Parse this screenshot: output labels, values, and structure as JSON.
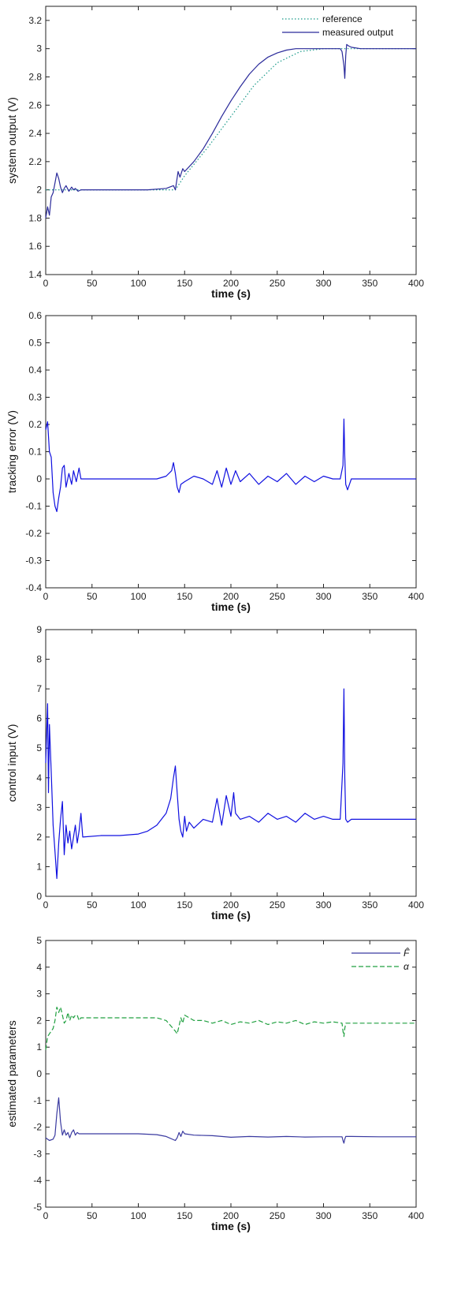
{
  "chart_data": [
    {
      "type": "line",
      "xlabel": "time (s)",
      "ylabel": "system output (V)",
      "xlim": [
        0,
        400
      ],
      "ylim": [
        1.4,
        3.3
      ],
      "xticks": [
        0,
        50,
        100,
        150,
        200,
        250,
        300,
        350,
        400
      ],
      "yticks": [
        1.4,
        1.6,
        1.8,
        2,
        2.2,
        2.4,
        2.6,
        2.8,
        3,
        3.2
      ],
      "legend_position": "top-right",
      "series": [
        {
          "name": "reference",
          "color": "#1a9a8a",
          "style": "dotted",
          "x": [
            0,
            140,
            150,
            175,
            200,
            225,
            250,
            275,
            300,
            400
          ],
          "y": [
            2.0,
            2.0,
            2.1,
            2.3,
            2.52,
            2.74,
            2.9,
            2.98,
            3.0,
            3.0
          ]
        },
        {
          "name": "measured output",
          "color": "#2a2a9a",
          "style": "solid",
          "x": [
            0,
            2,
            4,
            6,
            8,
            10,
            12,
            14,
            16,
            18,
            20,
            22,
            25,
            28,
            30,
            32,
            35,
            38,
            40,
            50,
            80,
            110,
            130,
            138,
            140,
            143,
            145,
            148,
            150,
            160,
            170,
            180,
            190,
            200,
            210,
            220,
            230,
            240,
            250,
            260,
            270,
            280,
            290,
            300,
            310,
            318,
            320,
            322,
            323,
            324,
            325,
            327,
            330,
            340,
            400
          ],
          "y": [
            1.8,
            1.88,
            1.82,
            1.95,
            1.98,
            2.05,
            2.12,
            2.08,
            2.02,
            1.98,
            2.01,
            2.03,
            1.99,
            2.02,
            2.0,
            2.01,
            1.99,
            2.0,
            2.0,
            2.0,
            2.0,
            2.0,
            2.01,
            2.03,
            2.0,
            2.13,
            2.09,
            2.15,
            2.13,
            2.2,
            2.29,
            2.4,
            2.52,
            2.63,
            2.73,
            2.82,
            2.89,
            2.94,
            2.97,
            2.99,
            3.0,
            3.0,
            3.0,
            3.0,
            3.0,
            3.0,
            2.98,
            2.88,
            2.79,
            2.95,
            3.03,
            3.02,
            3.01,
            3.0,
            3.0
          ]
        }
      ]
    },
    {
      "type": "line",
      "xlabel": "time (s)",
      "ylabel": "tracking error (V)",
      "xlim": [
        0,
        400
      ],
      "ylim": [
        -0.4,
        0.6
      ],
      "xticks": [
        0,
        50,
        100,
        150,
        200,
        250,
        300,
        350,
        400
      ],
      "yticks": [
        -0.4,
        -0.3,
        -0.2,
        -0.1,
        0,
        0.1,
        0.2,
        0.3,
        0.4,
        0.5,
        0.6
      ],
      "series": [
        {
          "color": "#1010e0",
          "x": [
            0,
            2,
            4,
            6,
            8,
            10,
            12,
            14,
            16,
            18,
            20,
            22,
            25,
            28,
            30,
            33,
            36,
            38,
            40,
            60,
            80,
            100,
            120,
            130,
            136,
            138,
            140,
            142,
            144,
            146,
            150,
            160,
            170,
            180,
            185,
            190,
            195,
            200,
            205,
            210,
            220,
            230,
            240,
            250,
            260,
            270,
            280,
            290,
            300,
            310,
            318,
            321,
            322,
            323,
            324,
            326,
            328,
            330,
            340,
            360,
            380,
            400
          ],
          "y": [
            0.18,
            0.21,
            0.1,
            0.08,
            -0.05,
            -0.1,
            -0.12,
            -0.07,
            -0.03,
            0.04,
            0.05,
            -0.03,
            0.02,
            -0.02,
            0.03,
            -0.01,
            0.04,
            0.0,
            0.0,
            0.0,
            0.0,
            0.0,
            0.0,
            0.01,
            0.03,
            0.06,
            0.02,
            -0.03,
            -0.05,
            -0.02,
            -0.01,
            0.01,
            0.0,
            -0.02,
            0.03,
            -0.03,
            0.04,
            -0.02,
            0.03,
            -0.01,
            0.02,
            -0.02,
            0.01,
            -0.01,
            0.02,
            -0.02,
            0.01,
            -0.01,
            0.01,
            0.0,
            0.0,
            0.05,
            0.22,
            0.08,
            -0.02,
            -0.04,
            -0.02,
            0.0,
            0.0,
            0.0,
            0.0,
            0.0
          ]
        }
      ]
    },
    {
      "type": "line",
      "xlabel": "time (s)",
      "ylabel": "control input (V)",
      "xlim": [
        0,
        400
      ],
      "ylim": [
        0,
        9
      ],
      "xticks": [
        0,
        50,
        100,
        150,
        200,
        250,
        300,
        350,
        400
      ],
      "yticks": [
        0,
        1,
        2,
        3,
        4,
        5,
        6,
        7,
        8,
        9
      ],
      "series": [
        {
          "color": "#1010e0",
          "x": [
            0,
            2,
            3,
            4,
            6,
            8,
            10,
            12,
            14,
            16,
            18,
            20,
            22,
            24,
            26,
            28,
            30,
            32,
            34,
            36,
            38,
            40,
            60,
            80,
            100,
            110,
            120,
            130,
            135,
            138,
            140,
            142,
            144,
            146,
            148,
            150,
            152,
            155,
            160,
            170,
            180,
            185,
            190,
            195,
            200,
            203,
            205,
            210,
            220,
            230,
            240,
            250,
            260,
            270,
            280,
            290,
            300,
            310,
            318,
            321,
            322,
            323,
            324,
            326,
            330,
            340,
            360,
            380,
            400
          ],
          "y": [
            4.5,
            6.5,
            3.5,
            5.8,
            4.2,
            2.4,
            1.5,
            0.6,
            1.8,
            2.6,
            3.2,
            1.4,
            2.4,
            1.8,
            2.2,
            1.6,
            2.0,
            2.4,
            1.8,
            2.2,
            2.8,
            2.0,
            2.05,
            2.05,
            2.1,
            2.2,
            2.4,
            2.8,
            3.3,
            4.0,
            4.4,
            3.5,
            2.6,
            2.2,
            2.0,
            2.7,
            2.2,
            2.5,
            2.3,
            2.6,
            2.5,
            3.3,
            2.4,
            3.4,
            2.7,
            3.5,
            2.8,
            2.6,
            2.7,
            2.5,
            2.8,
            2.6,
            2.7,
            2.5,
            2.8,
            2.6,
            2.7,
            2.6,
            2.6,
            4.5,
            7.0,
            4.0,
            2.6,
            2.5,
            2.6,
            2.6,
            2.6,
            2.6,
            2.6
          ]
        }
      ]
    },
    {
      "type": "line",
      "xlabel": "time (s)",
      "ylabel": "estimated parameters",
      "xlim": [
        0,
        400
      ],
      "ylim": [
        -5,
        5
      ],
      "xticks": [
        0,
        50,
        100,
        150,
        200,
        250,
        300,
        350,
        400
      ],
      "yticks": [
        -5,
        -4,
        -3,
        -2,
        -1,
        0,
        1,
        2,
        3,
        4,
        5
      ],
      "legend_position": "top-right",
      "series": [
        {
          "name": "F̂",
          "color": "#3a3aa0",
          "style": "solid",
          "x": [
            0,
            4,
            8,
            10,
            12,
            14,
            16,
            18,
            20,
            22,
            24,
            26,
            28,
            30,
            32,
            34,
            36,
            40,
            60,
            100,
            120,
            130,
            140,
            142,
            144,
            146,
            148,
            150,
            160,
            180,
            200,
            220,
            240,
            260,
            280,
            300,
            320,
            321,
            322,
            323,
            324,
            326,
            330,
            360,
            400
          ],
          "y": [
            -2.4,
            -2.5,
            -2.45,
            -2.3,
            -1.5,
            -0.9,
            -1.8,
            -2.3,
            -2.1,
            -2.3,
            -2.2,
            -2.4,
            -2.2,
            -2.1,
            -2.3,
            -2.2,
            -2.25,
            -2.25,
            -2.25,
            -2.25,
            -2.28,
            -2.35,
            -2.5,
            -2.4,
            -2.2,
            -2.35,
            -2.15,
            -2.25,
            -2.3,
            -2.32,
            -2.38,
            -2.35,
            -2.37,
            -2.35,
            -2.37,
            -2.36,
            -2.36,
            -2.5,
            -2.6,
            -2.45,
            -2.35,
            -2.35,
            -2.35,
            -2.36,
            -2.36
          ]
        },
        {
          "name": "α",
          "color": "#20a040",
          "style": "dashed",
          "x": [
            0,
            2,
            4,
            6,
            8,
            10,
            12,
            14,
            16,
            18,
            20,
            22,
            24,
            26,
            28,
            30,
            32,
            34,
            36,
            38,
            40,
            60,
            80,
            100,
            120,
            130,
            140,
            142,
            144,
            146,
            148,
            150,
            160,
            170,
            180,
            190,
            200,
            210,
            220,
            230,
            240,
            250,
            260,
            270,
            280,
            290,
            300,
            310,
            320,
            321,
            322,
            323,
            324,
            326,
            330,
            360,
            400
          ],
          "y": [
            0.9,
            1.4,
            1.5,
            1.6,
            1.7,
            2.0,
            2.5,
            2.3,
            2.5,
            2.2,
            1.9,
            2.0,
            2.3,
            2.0,
            2.2,
            2.1,
            2.2,
            2.2,
            2.0,
            2.1,
            2.1,
            2.1,
            2.1,
            2.1,
            2.1,
            2.0,
            1.6,
            1.5,
            1.8,
            2.1,
            1.9,
            2.2,
            2.0,
            2.0,
            1.9,
            2.0,
            1.85,
            1.95,
            1.9,
            2.0,
            1.85,
            1.95,
            1.9,
            2.0,
            1.85,
            1.95,
            1.9,
            1.95,
            1.9,
            1.6,
            1.4,
            1.7,
            1.9,
            1.9,
            1.9,
            1.9,
            1.9
          ]
        }
      ]
    }
  ]
}
